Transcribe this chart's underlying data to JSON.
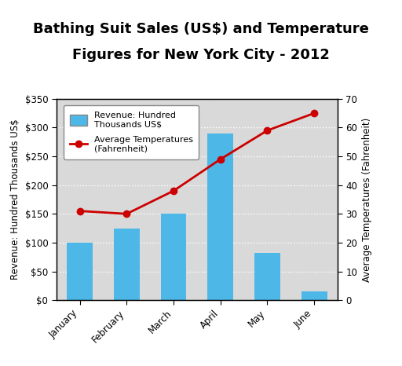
{
  "months": [
    "January",
    "February",
    "March",
    "April",
    "May",
    "June"
  ],
  "revenue": [
    100,
    125,
    150,
    290,
    82,
    15
  ],
  "temperature": [
    31,
    30,
    38,
    49,
    59,
    65
  ],
  "bar_color": "#4db8e8",
  "line_color": "#cc0000",
  "marker_color": "#cc0000",
  "title_line1": "Bathing Suit Sales (US$) and Temperature",
  "title_line2": "Figures for New York City - 2012",
  "ylabel_left": "Revenue: Hundred Thousands US$",
  "ylabel_right": "Average Temperatures (Fahrenheit)",
  "ylim_left": [
    0,
    350
  ],
  "ylim_right": [
    0,
    70
  ],
  "yticks_left": [
    0,
    50,
    100,
    150,
    200,
    250,
    300,
    350
  ],
  "ytick_labels_left": [
    "$0",
    "$50",
    "$100",
    "$150",
    "$200",
    "$250",
    "$300",
    "$350"
  ],
  "yticks_right": [
    0,
    10,
    20,
    30,
    40,
    50,
    60,
    70
  ],
  "legend_bar_label": "Revenue: Hundred\nThousands US$",
  "legend_line_label": "Average Temperatures\n(Fahrenheit)",
  "background_color": "#d9d9d9",
  "outer_background": "#ffffff",
  "title_fontsize": 13,
  "axis_label_fontsize": 8.5,
  "tick_label_fontsize": 8.5,
  "border_color": "#000000"
}
